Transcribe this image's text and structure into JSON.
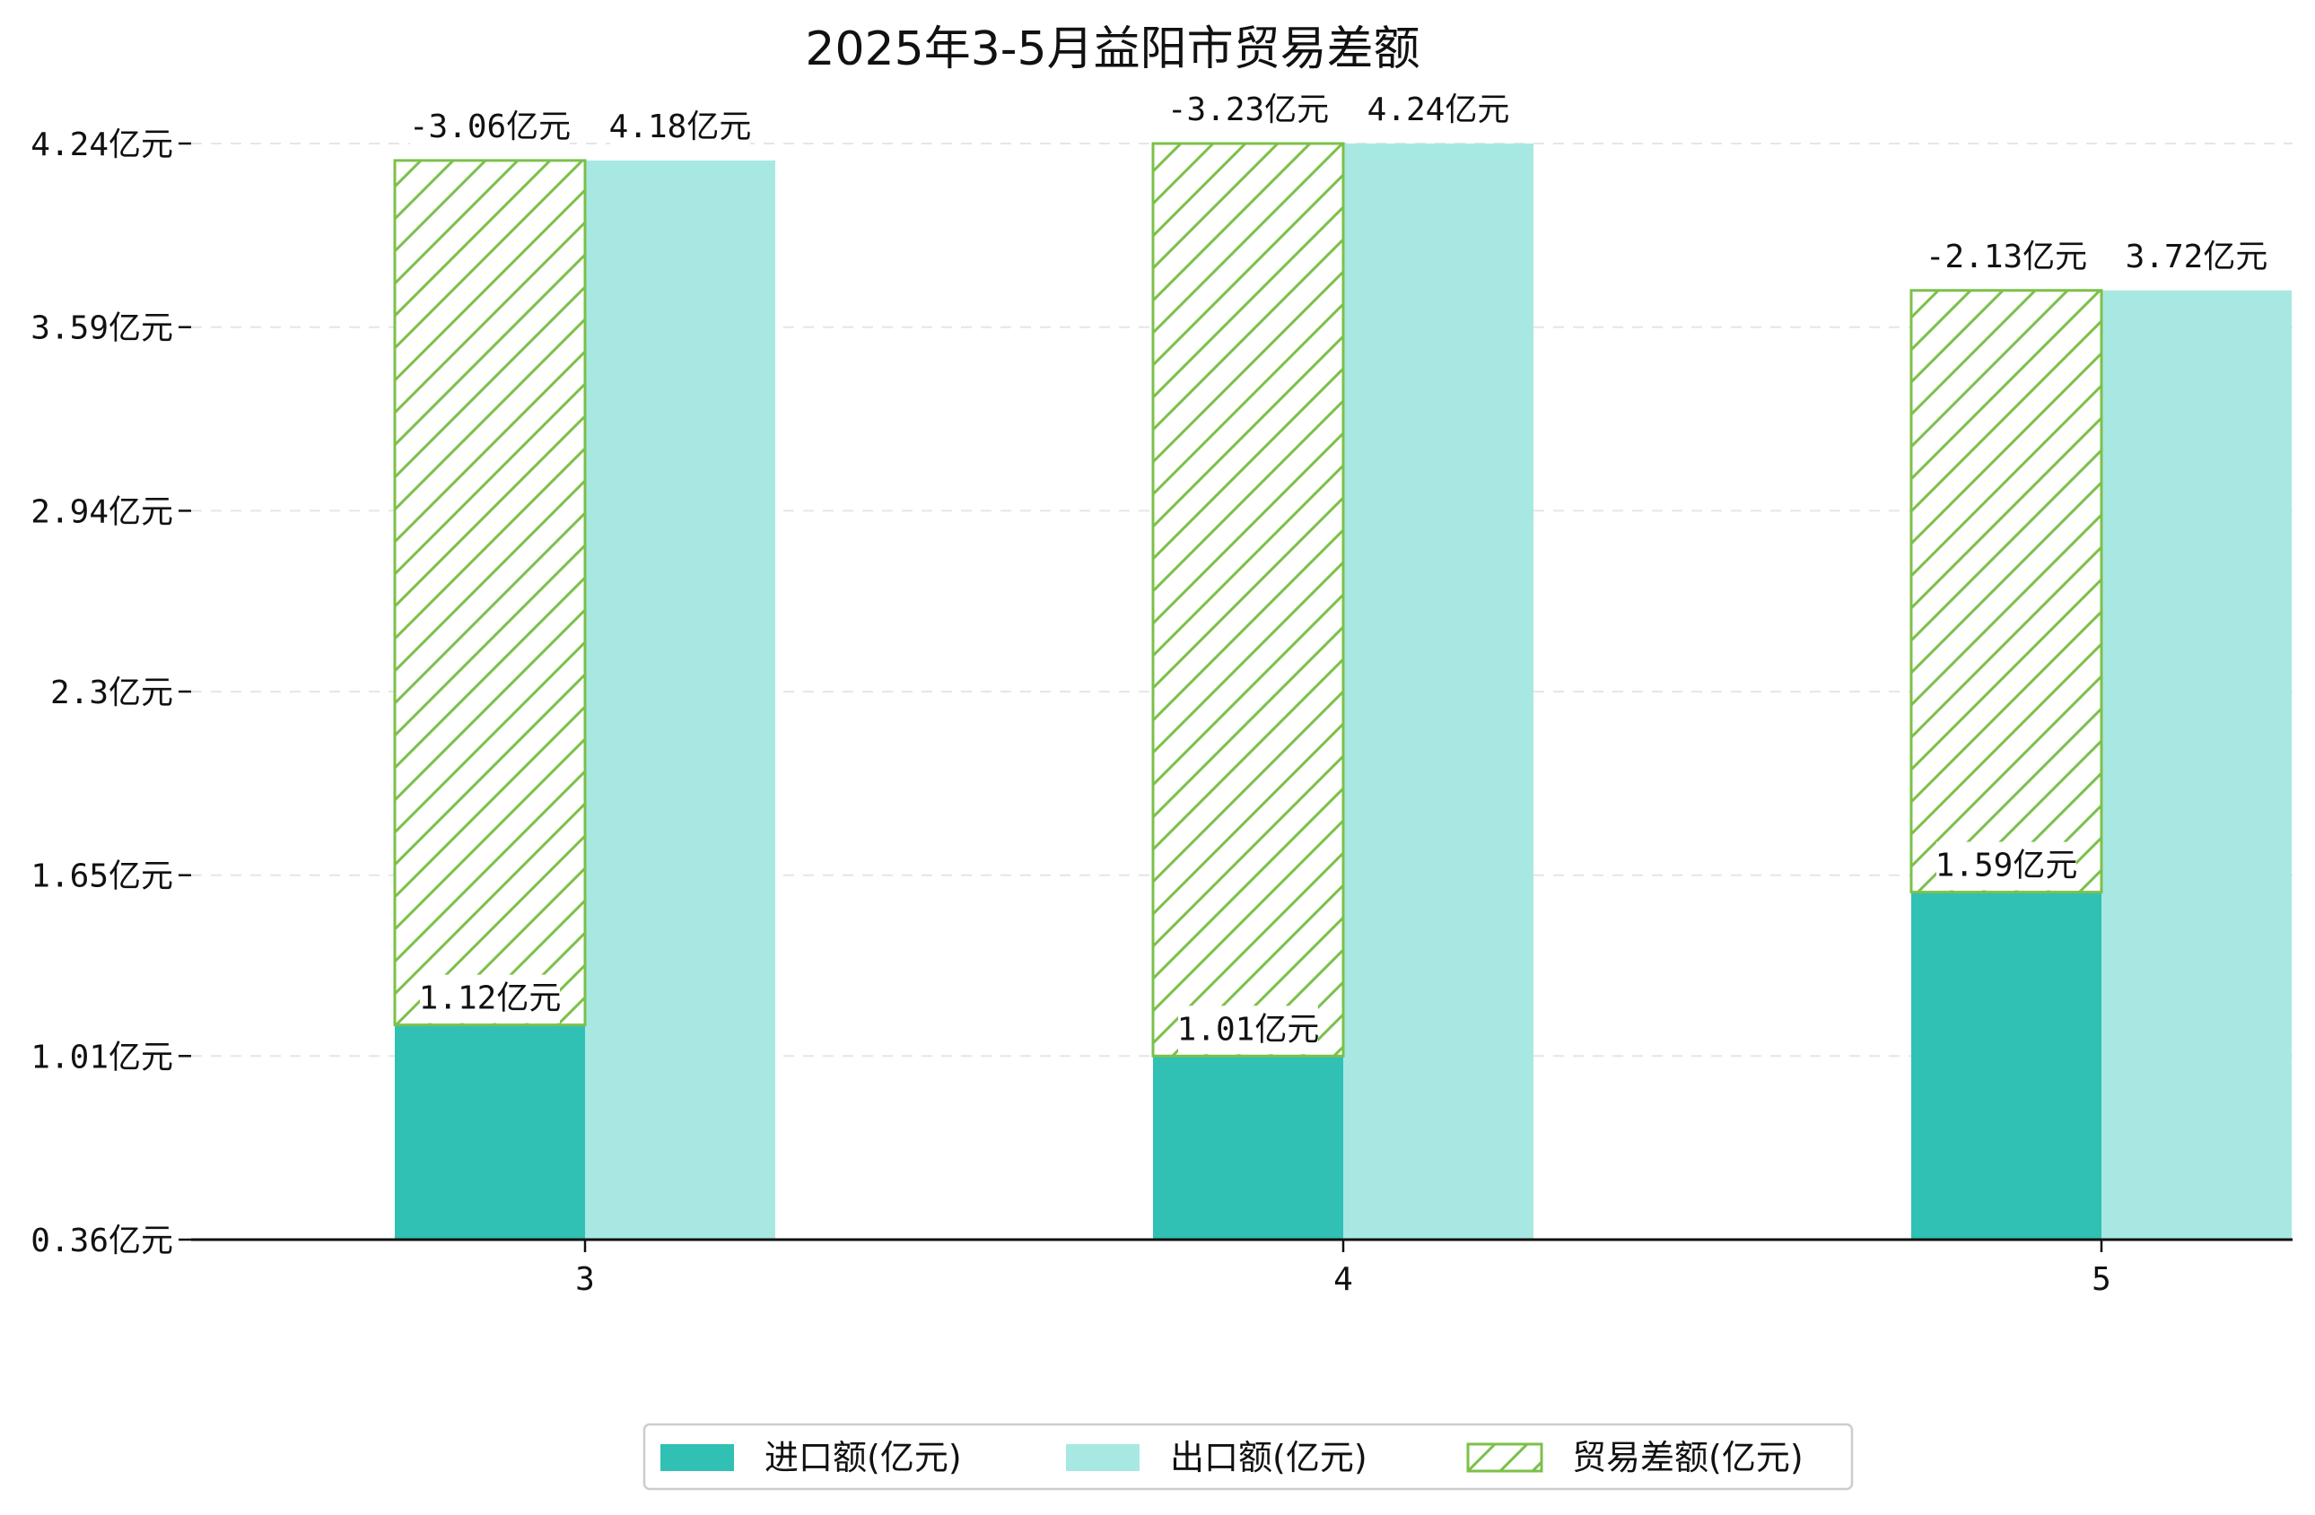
{
  "chart_data": {
    "type": "bar",
    "title": "2025年3-5月益阳市贸易差额",
    "xlabel": "",
    "ylabel": "",
    "categories": [
      "3",
      "4",
      "5"
    ],
    "yticks": [
      0.36,
      1.01,
      1.65,
      2.3,
      2.94,
      3.59,
      4.24
    ],
    "ytick_labels": [
      "0.36亿元",
      "1.01亿元",
      "1.65亿元",
      "2.3亿元",
      "2.94亿元",
      "3.59亿元",
      "4.24亿元"
    ],
    "ylim": [
      0.36,
      4.24
    ],
    "grid": true,
    "legend_position": "bottom-center",
    "series": [
      {
        "name": "进口额(亿元)",
        "values": [
          1.12,
          1.01,
          1.59
        ],
        "labels": [
          "1.12亿元",
          "1.01亿元",
          "1.59亿元"
        ],
        "color": "#30c0b4"
      },
      {
        "name": "出口额(亿元)",
        "values": [
          4.18,
          4.24,
          3.72
        ],
        "labels": [
          "4.18亿元",
          "4.24亿元",
          "3.72亿元"
        ],
        "color": "#a8e8e2"
      },
      {
        "name": "贸易差额(亿元)",
        "values": [
          -3.06,
          -3.23,
          -2.13
        ],
        "labels": [
          "-3.06亿元",
          "-3.23亿元",
          "-2.13亿元"
        ],
        "color": "#7cc04a"
      }
    ]
  }
}
